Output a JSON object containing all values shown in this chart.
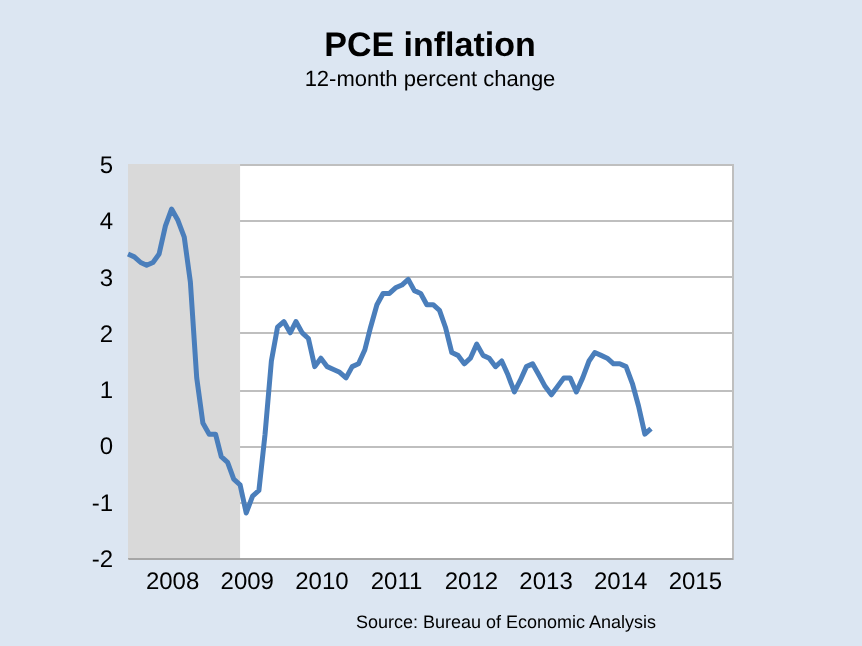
{
  "chart_data": {
    "type": "line",
    "title": "PCE inflation",
    "subtitle": "12-month percent change",
    "annotations": [
      "Source: Bureau of Economic Analysis"
    ],
    "x": [
      "2007-12",
      "2008-01",
      "2008-02",
      "2008-03",
      "2008-04",
      "2008-05",
      "2008-06",
      "2008-07",
      "2008-08",
      "2008-09",
      "2008-10",
      "2008-11",
      "2008-12",
      "2009-01",
      "2009-02",
      "2009-03",
      "2009-04",
      "2009-05",
      "2009-06",
      "2009-07",
      "2009-08",
      "2009-09",
      "2009-10",
      "2009-11",
      "2009-12",
      "2010-01",
      "2010-02",
      "2010-03",
      "2010-04",
      "2010-05",
      "2010-06",
      "2010-07",
      "2010-08",
      "2010-09",
      "2010-10",
      "2010-11",
      "2010-12",
      "2011-01",
      "2011-02",
      "2011-03",
      "2011-04",
      "2011-05",
      "2011-06",
      "2011-07",
      "2011-08",
      "2011-09",
      "2011-10",
      "2011-11",
      "2011-12",
      "2012-01",
      "2012-02",
      "2012-03",
      "2012-04",
      "2012-05",
      "2012-06",
      "2012-07",
      "2012-08",
      "2012-09",
      "2012-10",
      "2012-11",
      "2012-12",
      "2013-01",
      "2013-02",
      "2013-03",
      "2013-04",
      "2013-05",
      "2013-06",
      "2013-07",
      "2013-08",
      "2013-09",
      "2013-10",
      "2013-11",
      "2013-12",
      "2014-01",
      "2014-02",
      "2014-03",
      "2014-04",
      "2014-05",
      "2014-06",
      "2014-07",
      "2014-08",
      "2014-09",
      "2014-10",
      "2014-11",
      "2014-12"
    ],
    "series": [
      {
        "color": "#4a7ebb",
        "values": [
          3.4,
          3.35,
          3.25,
          3.2,
          3.25,
          3.4,
          3.9,
          4.2,
          4.0,
          3.7,
          2.9,
          1.2,
          0.4,
          0.2,
          0.2,
          -0.2,
          -0.3,
          -0.6,
          -0.7,
          -1.2,
          -0.9,
          -0.8,
          0.2,
          1.5,
          2.1,
          2.2,
          2.0,
          2.2,
          2.0,
          1.9,
          1.4,
          1.55,
          1.4,
          1.35,
          1.3,
          1.2,
          1.4,
          1.45,
          1.7,
          2.1,
          2.5,
          2.7,
          2.7,
          2.8,
          2.85,
          2.95,
          2.75,
          2.7,
          2.5,
          2.5,
          2.4,
          2.1,
          1.65,
          1.6,
          1.45,
          1.55,
          1.8,
          1.6,
          1.55,
          1.4,
          1.5,
          1.25,
          0.95,
          1.15,
          1.4,
          1.45,
          1.25,
          1.05,
          0.9,
          1.05,
          1.2,
          1.2,
          0.95,
          1.2,
          1.5,
          1.65,
          1.6,
          1.55,
          1.45,
          1.45,
          1.4,
          1.1,
          0.7,
          0.2,
          0.3
        ]
      }
    ],
    "xlim": [
      "2007-12",
      "2016-01"
    ],
    "xticks": [
      {
        "value": "2008-07",
        "label": "2008"
      },
      {
        "value": "2009-07",
        "label": "2009"
      },
      {
        "value": "2010-07",
        "label": "2010"
      },
      {
        "value": "2011-07",
        "label": "2011"
      },
      {
        "value": "2012-07",
        "label": "2012"
      },
      {
        "value": "2013-07",
        "label": "2013"
      },
      {
        "value": "2014-07",
        "label": "2014"
      },
      {
        "value": "2015-07",
        "label": "2015"
      }
    ],
    "ylim": [
      -2,
      5
    ],
    "yticks": [
      -2,
      -1,
      0,
      1,
      2,
      3,
      4,
      5
    ],
    "bands": [
      {
        "axis": "x",
        "from": "2007-12",
        "to": "2009-06",
        "color": "#d9d9d9"
      }
    ],
    "grid": "y",
    "line_style": "solid",
    "marker": "none"
  }
}
